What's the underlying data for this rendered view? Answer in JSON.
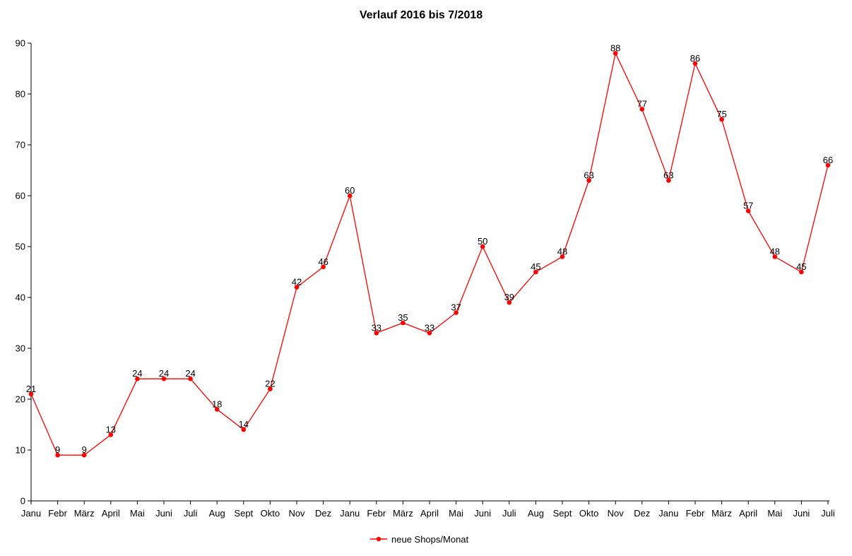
{
  "chart_data": {
    "type": "line",
    "title": "Verlauf 2016 bis 7/2018",
    "xlabel": "",
    "ylabel": "",
    "ylim": [
      0,
      90
    ],
    "yticks": [
      0,
      10,
      20,
      30,
      40,
      50,
      60,
      70,
      80,
      90
    ],
    "categories": [
      "Janu",
      "Febr",
      "März",
      "April",
      "Mai",
      "Juni",
      "Juli",
      "Aug",
      "Sept",
      "Okto",
      "Nov",
      "Dez",
      "Janu",
      "Febr",
      "März",
      "April",
      "Mai",
      "Juni",
      "Juli",
      "Aug",
      "Sept",
      "Okto",
      "Nov",
      "Dez",
      "Janu",
      "Febr",
      "März",
      "April",
      "Mai",
      "Juni",
      "Juli"
    ],
    "series": [
      {
        "name": "neue Shops/Monat",
        "color": "#ff0000",
        "values": [
          21,
          9,
          9,
          13,
          24,
          24,
          24,
          18,
          14,
          22,
          42,
          46,
          60,
          33,
          35,
          33,
          37,
          50,
          39,
          45,
          48,
          63,
          88,
          77,
          63,
          86,
          75,
          57,
          48,
          45,
          66
        ]
      }
    ],
    "grid": false,
    "legend_position": "bottom-center",
    "data_labels": true
  }
}
